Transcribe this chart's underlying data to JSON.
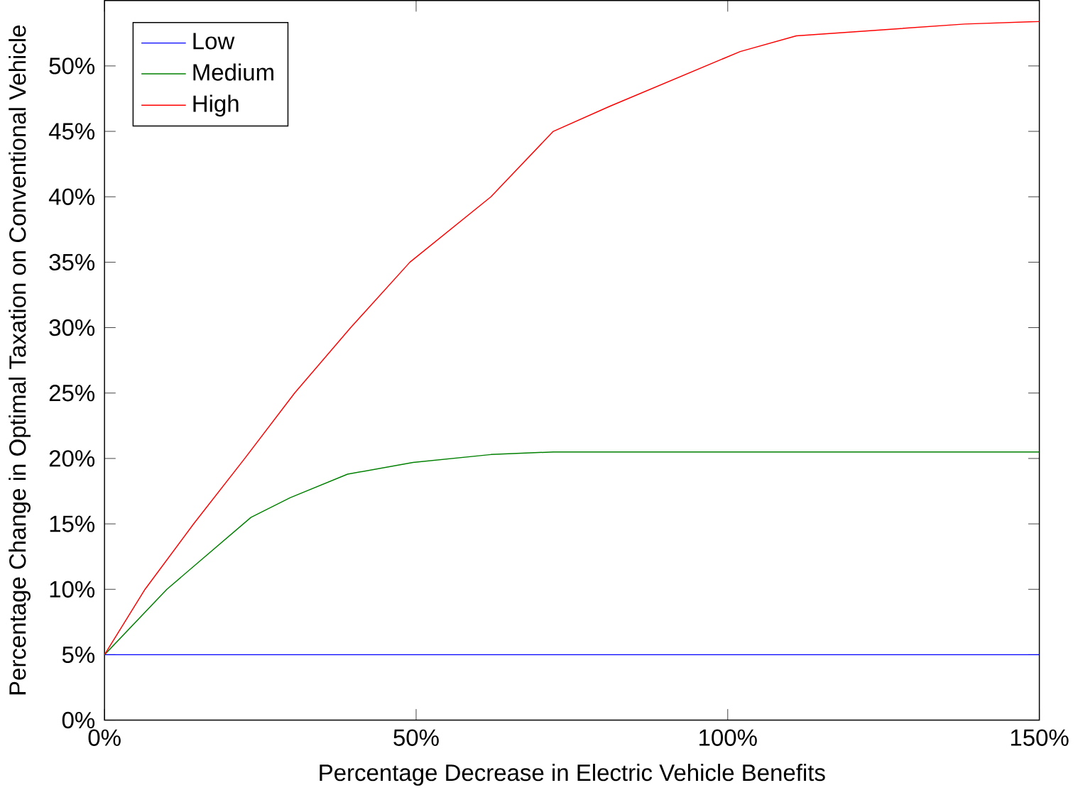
{
  "chart_data": {
    "type": "line",
    "xlabel": "Percentage Decrease in Electric Vehicle Benefits",
    "ylabel": "Percentage Change in Optimal Taxation on Conventional Vehicle",
    "xlim": [
      0,
      150
    ],
    "ylim": [
      0,
      55
    ],
    "xticks": [
      {
        "value": 0,
        "label": "0%"
      },
      {
        "value": 50,
        "label": "50%"
      },
      {
        "value": 100,
        "label": "100%"
      },
      {
        "value": 150,
        "label": "150%"
      }
    ],
    "yticks": [
      {
        "value": 0,
        "label": "0%"
      },
      {
        "value": 5,
        "label": "5%"
      },
      {
        "value": 10,
        "label": "10%"
      },
      {
        "value": 15,
        "label": "15%"
      },
      {
        "value": 20,
        "label": "20%"
      },
      {
        "value": 25,
        "label": "25%"
      },
      {
        "value": 30,
        "label": "30%"
      },
      {
        "value": 35,
        "label": "35%"
      },
      {
        "value": 40,
        "label": "40%"
      },
      {
        "value": 45,
        "label": "45%"
      },
      {
        "value": 50,
        "label": "50%"
      }
    ],
    "legend": "top left",
    "grid": false,
    "series": [
      {
        "name": "Low",
        "color": "#0000ff",
        "x": [
          0,
          150
        ],
        "values": [
          5,
          5
        ]
      },
      {
        "name": "Medium",
        "color": "#008000",
        "x": [
          0,
          10,
          23.5,
          29.8,
          39,
          49.5,
          62,
          72,
          150
        ],
        "values": [
          5,
          10,
          15.5,
          17,
          18.8,
          19.7,
          20.3,
          20.5,
          20.5
        ]
      },
      {
        "name": "High",
        "color": "#ff0000",
        "x": [
          0,
          6.5,
          14.3,
          22.5,
          30.5,
          39.5,
          49,
          62,
          72,
          81,
          102,
          111,
          138,
          150
        ],
        "values": [
          5,
          10,
          15,
          20,
          25,
          30,
          35,
          40,
          45,
          46.9,
          51.1,
          52.3,
          53.2,
          53.4
        ]
      }
    ]
  }
}
